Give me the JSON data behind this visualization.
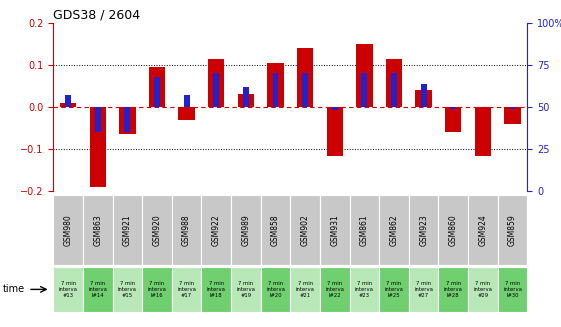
{
  "title": "GDS38 / 2604",
  "samples": [
    "GSM980",
    "GSM863",
    "GSM921",
    "GSM920",
    "GSM988",
    "GSM922",
    "GSM989",
    "GSM858",
    "GSM902",
    "GSM931",
    "GSM861",
    "GSM862",
    "GSM923",
    "GSM860",
    "GSM924",
    "GSM859"
  ],
  "time_labels": [
    "7 min\ninterva\n#13",
    "7 min\ninterva\nl#14",
    "7 min\ninterva\n#15",
    "7 min\ninterva\nl#16",
    "7 min\ninterva\n#17",
    "7 min\ninterva\nl#18",
    "7 min\ninterva\n#19",
    "7 min\ninterva\nl#20",
    "7 min\ninterva\n#21",
    "7 min\ninterva\nl#22",
    "7 min\ninterva\n#23",
    "7 min\ninterva\nl#25",
    "7 min\ninterva\n#27",
    "7 min\ninterva\nl#28",
    "7 min\ninterva\n#29",
    "7 min\ninterva\nl#30"
  ],
  "log_ratio": [
    0.01,
    -0.19,
    -0.065,
    0.095,
    -0.03,
    0.115,
    0.03,
    0.105,
    0.14,
    -0.115,
    0.15,
    0.115,
    0.04,
    -0.06,
    -0.115,
    -0.04
  ],
  "percentile_raw": [
    57,
    35,
    35,
    68,
    57,
    70,
    62,
    70,
    70,
    48,
    70,
    70,
    64,
    49,
    50,
    49
  ],
  "bar_color_red": "#cc0000",
  "bar_color_blue": "#2222cc",
  "bg_color_label_gray": "#c8c8c8",
  "bg_color_label_green_light": "#b8e8b8",
  "bg_color_label_green_dark": "#70d070",
  "ylim": [
    -0.2,
    0.2
  ],
  "yticks_left": [
    -0.2,
    -0.1,
    0.0,
    0.1,
    0.2
  ],
  "yticks_right": [
    0,
    25,
    50,
    75,
    100
  ],
  "bar_width": 0.55,
  "blue_bar_width": 0.2
}
